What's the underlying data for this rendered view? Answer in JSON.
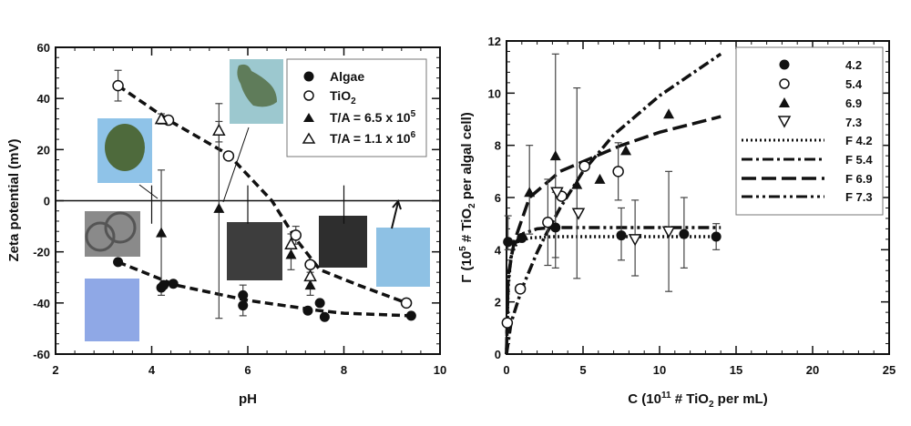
{
  "chart_data": [
    {
      "type": "scatter",
      "title": "",
      "xlabel": "pH",
      "ylabel": "Zeta potential (mV)",
      "xlim": [
        2,
        10
      ],
      "ylim": [
        -60,
        60
      ],
      "xticks": [
        "2",
        "4",
        "6",
        "8",
        "10"
      ],
      "yticks": [
        "-60",
        "-40",
        "-20",
        "0",
        "20",
        "40",
        "60"
      ],
      "legend_position": "top-right",
      "series": [
        {
          "name": "Algae",
          "marker": "filled-circle",
          "x": [
            3.3,
            4.2,
            4.25,
            4.45,
            5.9,
            5.9,
            7.25,
            7.5,
            7.6,
            9.4
          ],
          "y": [
            -24,
            -34,
            -33,
            -32.5,
            -37,
            -41,
            -43,
            -40,
            -45.5,
            -45
          ]
        },
        {
          "name": "TiO2",
          "label_main": "TiO",
          "label_sub": "2",
          "marker": "open-circle",
          "x": [
            3.3,
            4.35,
            5.6,
            7.0,
            7.3,
            9.3
          ],
          "y": [
            45,
            31.5,
            17.5,
            -13.5,
            -25,
            -40
          ]
        },
        {
          "name": "T/A = 6.5 x 10^5",
          "label_main": "T/A = 6.5 x 10",
          "label_sup": "5",
          "marker": "filled-triangle",
          "x": [
            4.2,
            5.4,
            6.9,
            7.3
          ],
          "y": [
            -12.5,
            -3,
            -21,
            -33
          ]
        },
        {
          "name": "T/A = 1.1 x 10^6",
          "label_main": "T/A = 1.1 x 10",
          "label_sup": "6",
          "marker": "open-triangle",
          "x": [
            4.2,
            5.4,
            6.9,
            7.3
          ],
          "y": [
            32,
            27.5,
            -17,
            -29.5
          ]
        }
      ],
      "error_bars": [
        {
          "x": 3.3,
          "lo": 39,
          "hi": 51
        },
        {
          "x": 4.2,
          "lo": -37,
          "hi": 12
        },
        {
          "x": 5.4,
          "lo": -46,
          "hi": 38
        },
        {
          "x": 5.4,
          "lo": 23,
          "hi": 31
        },
        {
          "x": 5.9,
          "lo": -45,
          "hi": -33
        },
        {
          "x": 6.9,
          "lo": -27,
          "hi": -13
        },
        {
          "x": 7.3,
          "lo": -37,
          "hi": -28
        },
        {
          "x": 7.0,
          "lo": -17,
          "hi": -10
        },
        {
          "x": 4.2,
          "lo": 30,
          "hi": 34
        }
      ],
      "fits": [
        {
          "name": "TiO2 fit",
          "x": [
            3.3,
            4.35,
            5.6,
            6.5,
            7.0,
            7.5,
            8.3,
            9.3
          ],
          "y": [
            45,
            31.5,
            18,
            0,
            -15,
            -27,
            -33,
            -40
          ]
        },
        {
          "name": "Algae fit",
          "x": [
            3.3,
            4.5,
            6,
            7.5,
            8,
            9.4
          ],
          "y": [
            -24,
            -33,
            -39,
            -43,
            -44,
            -45
          ]
        }
      ],
      "reference_line_y": 0
    },
    {
      "type": "scatter",
      "title": "",
      "xlabel_main": "C (10",
      "xlabel_sup": "11",
      "xlabel_mid": " # TiO",
      "xlabel_sub": "2",
      "xlabel_end": " per mL)",
      "ylabel_main": "Γ (10",
      "ylabel_sup": "5",
      "ylabel_mid": " # TiO",
      "ylabel_sub": "2",
      "ylabel_end": " per algal cell)",
      "xlim": [
        0,
        25
      ],
      "ylim": [
        0,
        12
      ],
      "xticks": [
        "0",
        "5",
        "10",
        "15",
        "20",
        "25"
      ],
      "yticks": [
        "0",
        "2",
        "4",
        "6",
        "8",
        "10",
        "12"
      ],
      "legend_position": "top-right",
      "series": [
        {
          "name": "4.2",
          "marker": "filled-circle",
          "x": [
            0.1,
            1.0,
            3.2,
            7.5,
            11.6,
            13.7
          ],
          "y": [
            4.3,
            4.45,
            4.85,
            4.55,
            4.6,
            4.5
          ]
        },
        {
          "name": "5.4",
          "marker": "open-circle",
          "x": [
            0.05,
            0.9,
            2.7,
            3.6,
            5.1,
            7.3
          ],
          "y": [
            1.2,
            2.5,
            5.05,
            6.05,
            7.2,
            7.0
          ]
        },
        {
          "name": "6.9",
          "marker": "filled-triangle",
          "x": [
            1.5,
            3.2,
            4.6,
            6.1,
            7.8,
            10.6
          ],
          "y": [
            6.2,
            7.6,
            6.5,
            6.7,
            7.8,
            9.2
          ]
        },
        {
          "name": "7.3",
          "marker": "open-inverted-triangle",
          "x": [
            3.3,
            4.7,
            8.4,
            10.6
          ],
          "y": [
            6.2,
            5.4,
            4.4,
            4.7
          ]
        }
      ],
      "error_bars": [
        {
          "x": 0.1,
          "lo": 4.0,
          "hi": 5.3
        },
        {
          "x": 1.5,
          "lo": 4.6,
          "hi": 8.0
        },
        {
          "x": 2.7,
          "lo": 3.4,
          "hi": 6.7
        },
        {
          "x": 3.2,
          "lo": 3.3,
          "hi": 11.5
        },
        {
          "x": 3.2,
          "lo": 3.7,
          "hi": 6.2
        },
        {
          "x": 4.6,
          "lo": 2.9,
          "hi": 10.2
        },
        {
          "x": 7.5,
          "lo": 3.6,
          "hi": 5.6
        },
        {
          "x": 7.3,
          "lo": 5.9,
          "hi": 8.1
        },
        {
          "x": 8.4,
          "lo": 3.0,
          "hi": 5.9
        },
        {
          "x": 10.6,
          "lo": 2.4,
          "hi": 7.0
        },
        {
          "x": 11.6,
          "lo": 3.3,
          "hi": 6.0
        },
        {
          "x": 13.7,
          "lo": 4.0,
          "hi": 5.0
        }
      ],
      "fits": [
        {
          "name": "F 4.2",
          "style": "dotted",
          "x": [
            0,
            0.1,
            0.3,
            0.7,
            1.5,
            3,
            14
          ],
          "y": [
            0,
            2.5,
            3.8,
            4.3,
            4.45,
            4.5,
            4.5
          ]
        },
        {
          "name": "F 5.4",
          "style": "dash-dot",
          "x": [
            0,
            0.3,
            1,
            2,
            2.5,
            3.5,
            5,
            7,
            10,
            14
          ],
          "y": [
            0,
            1.2,
            2.5,
            3.9,
            4.5,
            5.6,
            7.0,
            8.4,
            9.9,
            11.5
          ]
        },
        {
          "name": "F 6.9",
          "style": "long-dash",
          "x": [
            0,
            0.1,
            0.5,
            1.5,
            3.5,
            5.5,
            7.5,
            10,
            14
          ],
          "y": [
            0,
            3.0,
            4.3,
            6.0,
            7.0,
            7.5,
            8.0,
            8.5,
            9.1
          ]
        },
        {
          "name": "F 7.3",
          "style": "dash-dot-dot",
          "x": [
            0,
            0.1,
            0.4,
            1,
            2,
            3,
            14
          ],
          "y": [
            0,
            2.8,
            4.1,
            4.6,
            4.8,
            4.85,
            4.85
          ]
        }
      ]
    }
  ]
}
